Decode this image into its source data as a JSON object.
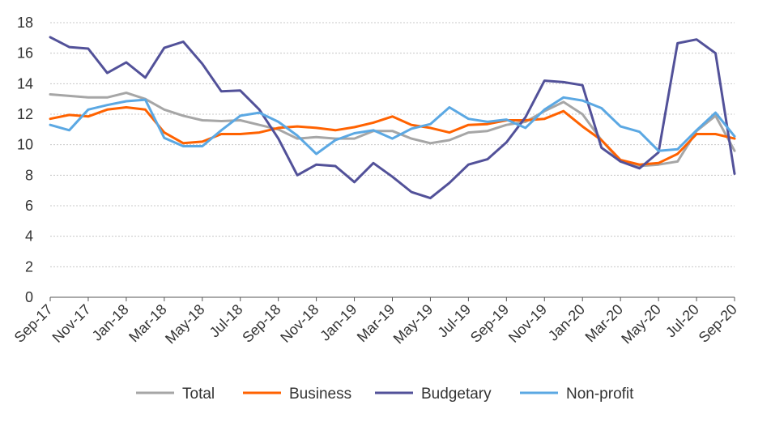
{
  "chart_data": {
    "type": "line",
    "title": "",
    "xlabel": "",
    "ylabel": "",
    "ylim": [
      0,
      18
    ],
    "yticks": [
      0,
      2,
      4,
      6,
      8,
      10,
      12,
      14,
      16,
      18
    ],
    "grid": true,
    "legend_position": "bottom",
    "x": [
      "Sep-17",
      "Oct-17",
      "Nov-17",
      "Dec-17",
      "Jan-18",
      "Feb-18",
      "Mar-18",
      "Apr-18",
      "May-18",
      "Jun-18",
      "Jul-18",
      "Aug-18",
      "Sep-18",
      "Oct-18",
      "Nov-18",
      "Dec-18",
      "Jan-19",
      "Feb-19",
      "Mar-19",
      "Apr-19",
      "May-19",
      "Jun-19",
      "Jul-19",
      "Aug-19",
      "Sep-19",
      "Oct-19",
      "Nov-19",
      "Dec-19",
      "Jan-20",
      "Feb-20",
      "Mar-20",
      "Apr-20",
      "May-20",
      "Jun-20",
      "Jul-20",
      "Aug-20",
      "Sep-20"
    ],
    "xtick_labels": [
      "Sep-17",
      "Nov-17",
      "Jan-18",
      "Mar-18",
      "May-18",
      "Jul-18",
      "Sep-18",
      "Nov-18",
      "Jan-19",
      "Mar-19",
      "May-19",
      "Jul-19",
      "Sep-19",
      "Nov-19",
      "Jan-20",
      "Mar-20",
      "May-20",
      "Jul-20",
      "Sep-20"
    ],
    "series": [
      {
        "name": "Total",
        "color": "#a6a6a6",
        "values": [
          13.3,
          13.2,
          13.1,
          13.1,
          13.4,
          13.0,
          12.3,
          11.9,
          11.6,
          11.55,
          11.6,
          11.3,
          11.0,
          10.4,
          10.5,
          10.4,
          10.4,
          10.9,
          10.9,
          10.4,
          10.1,
          10.3,
          10.8,
          10.9,
          11.3,
          11.5,
          12.2,
          12.8,
          12.0,
          10.3,
          8.9,
          8.6,
          8.7,
          8.9,
          10.9,
          11.9,
          9.6
        ]
      },
      {
        "name": "Business",
        "color": "#ff6200",
        "values": [
          11.7,
          11.95,
          11.85,
          12.3,
          12.45,
          12.3,
          10.8,
          10.1,
          10.2,
          10.7,
          10.7,
          10.8,
          11.1,
          11.2,
          11.1,
          10.95,
          11.15,
          11.45,
          11.85,
          11.3,
          11.1,
          10.8,
          11.3,
          11.35,
          11.6,
          11.6,
          11.7,
          12.2,
          11.2,
          10.3,
          9.0,
          8.7,
          8.8,
          9.4,
          10.7,
          10.7,
          10.4
        ]
      },
      {
        "name": "Budgetary",
        "color": "#525199",
        "values": [
          17.05,
          16.4,
          16.3,
          14.7,
          15.4,
          14.4,
          16.35,
          16.75,
          15.3,
          13.5,
          13.55,
          12.3,
          10.4,
          8.0,
          8.7,
          8.6,
          7.55,
          8.8,
          7.9,
          6.9,
          6.5,
          7.5,
          8.7,
          9.05,
          10.15,
          11.8,
          14.2,
          14.1,
          13.9,
          9.8,
          8.9,
          8.45,
          9.5,
          16.65,
          16.9,
          16.0,
          8.1
        ]
      },
      {
        "name": "Non-profit",
        "color": "#5ba8e3",
        "values": [
          11.3,
          10.95,
          12.3,
          12.6,
          12.85,
          12.95,
          10.45,
          9.9,
          9.9,
          10.95,
          11.9,
          12.1,
          11.5,
          10.6,
          9.4,
          10.3,
          10.75,
          10.95,
          10.4,
          11.05,
          11.35,
          12.45,
          11.7,
          11.5,
          11.65,
          11.1,
          12.3,
          13.1,
          12.9,
          12.4,
          11.2,
          10.85,
          9.6,
          9.7,
          10.95,
          12.1,
          10.55
        ]
      }
    ]
  }
}
